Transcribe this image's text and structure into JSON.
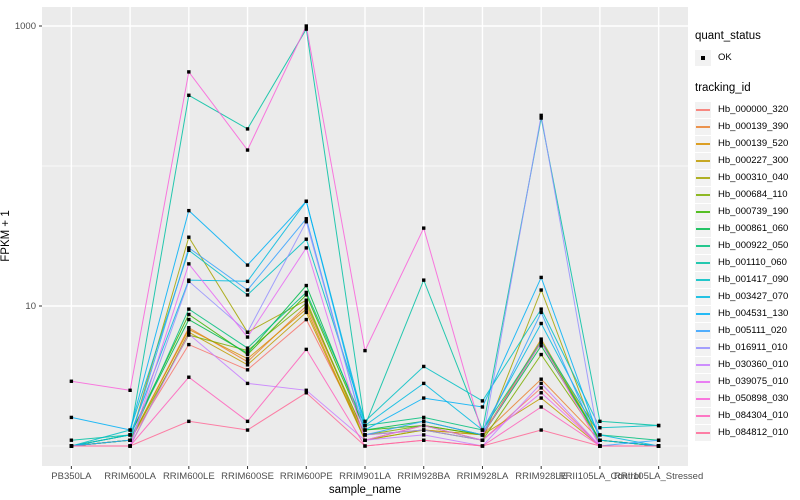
{
  "chart_data": {
    "type": "line",
    "title": "",
    "xlabel": "sample_name",
    "ylabel": "FPKM + 1",
    "y_scale": "log10",
    "y_axis_ticks": [
      {
        "label": "1000",
        "value": 1000
      },
      {
        "label": "10",
        "value": 10
      }
    ],
    "y_minor_breaks": [
      100,
      1
    ],
    "ylim_log": [
      0.85,
      3.14
    ],
    "grid": true,
    "panel_bg": "#EBEBEB",
    "grid_color": "#FFFFFF",
    "point_color": "#000000",
    "categories": [
      "PB350LA",
      "RRIM600LA",
      "RRIM600LE",
      "RRIM600SE",
      "RRIM600PE",
      "RRIM901LA",
      "RRIM928BA",
      "RRIM928LA",
      "RRIM928LE",
      "RRII105LA_Control",
      "RRII105LA_Stressed"
    ],
    "legend_position": "right",
    "legend": {
      "quant_status_title": "quant_status",
      "quant_status_items": [
        {
          "label": "OK",
          "symbol": "point"
        }
      ],
      "tracking_id_title": "tracking_id"
    },
    "series": [
      {
        "name": "Hb_000000_320",
        "color": "#F8766D",
        "values": [
          1.0,
          1.1,
          5.3,
          3.5,
          8.0,
          1.2,
          1.3,
          1.1,
          2.6,
          1.0,
          1.0
        ]
      },
      {
        "name": "Hb_000139_390",
        "color": "#EA8331",
        "values": [
          1.0,
          1.1,
          7.0,
          4.0,
          10.0,
          1.2,
          1.3,
          1.2,
          3.0,
          1.1,
          1.0
        ]
      },
      {
        "name": "Hb_000139_520",
        "color": "#D89000",
        "values": [
          1.0,
          1.1,
          6.8,
          4.2,
          9.5,
          1.1,
          1.4,
          1.2,
          5.8,
          1.1,
          1.0
        ]
      },
      {
        "name": "Hb_000227_300",
        "color": "#C09B00",
        "values": [
          1.0,
          1.0,
          6.5,
          3.8,
          9.0,
          1.1,
          1.3,
          1.2,
          2.2,
          1.0,
          1.0
        ]
      },
      {
        "name": "Hb_000310_040",
        "color": "#A3A500",
        "values": [
          1.0,
          1.1,
          31.0,
          6.5,
          11.0,
          1.1,
          1.3,
          1.1,
          13.0,
          1.0,
          1.0
        ]
      },
      {
        "name": "Hb_000684_110",
        "color": "#7CAE00",
        "values": [
          1.0,
          1.1,
          6.2,
          4.8,
          10.5,
          1.2,
          1.4,
          1.1,
          4.5,
          1.1,
          1.0
        ]
      },
      {
        "name": "Hb_000739_190",
        "color": "#39B600",
        "values": [
          1.0,
          1.2,
          8.7,
          4.5,
          12.0,
          1.3,
          1.4,
          1.2,
          5.5,
          1.1,
          1.0
        ]
      },
      {
        "name": "Hb_000861_060",
        "color": "#00BB4E",
        "values": [
          1.0,
          1.2,
          8.0,
          4.6,
          14.0,
          1.3,
          1.5,
          1.2,
          5.2,
          1.1,
          1.0
        ]
      },
      {
        "name": "Hb_000922_050",
        "color": "#00BF7D",
        "values": [
          1.0,
          1.1,
          9.5,
          5.0,
          12.5,
          1.4,
          1.6,
          1.3,
          5.6,
          1.2,
          1.1
        ]
      },
      {
        "name": "Hb_001110_060",
        "color": "#00C1A3",
        "values": [
          1.1,
          1.2,
          320.0,
          184.0,
          950.0,
          1.4,
          15.3,
          1.3,
          220.0,
          1.5,
          1.4
        ]
      },
      {
        "name": "Hb_001417_090",
        "color": "#00BFC4",
        "values": [
          1.0,
          1.3,
          25.0,
          12.0,
          30.0,
          1.5,
          3.7,
          2.1,
          9.5,
          1.35,
          1.4
        ]
      },
      {
        "name": "Hb_003427_070",
        "color": "#00BAE0",
        "values": [
          1.0,
          1.2,
          15.3,
          15.0,
          56.0,
          1.4,
          2.8,
          1.3,
          7.5,
          1.2,
          1.0
        ]
      },
      {
        "name": "Hb_004531_130",
        "color": "#00B0F6",
        "values": [
          1.6,
          1.3,
          48.0,
          19.6,
          56.0,
          1.3,
          2.2,
          1.9,
          16.0,
          1.1,
          1.0
        ]
      },
      {
        "name": "Hb_005111_020",
        "color": "#35A2FF",
        "values": [
          1.0,
          1.1,
          26.0,
          13.0,
          42.0,
          1.2,
          1.5,
          1.2,
          9.0,
          1.0,
          1.1
        ]
      },
      {
        "name": "Hb_016911_010",
        "color": "#9590FF",
        "values": [
          1.0,
          1.0,
          15.0,
          6.5,
          40.0,
          1.2,
          1.3,
          1.1,
          230.0,
          1.0,
          1.0
        ]
      },
      {
        "name": "Hb_030360_010",
        "color": "#C77CFF",
        "values": [
          1.0,
          1.0,
          6.3,
          2.8,
          2.5,
          1.1,
          1.2,
          1.0,
          2.8,
          1.0,
          1.0
        ]
      },
      {
        "name": "Hb_039075_010",
        "color": "#E76BF3",
        "values": [
          1.0,
          1.0,
          20.0,
          6.0,
          26.0,
          1.1,
          1.4,
          1.1,
          2.4,
          1.0,
          1.0
        ]
      },
      {
        "name": "Hb_050898_030",
        "color": "#FA62DB",
        "values": [
          2.9,
          2.5,
          470.0,
          130.0,
          1000.0,
          4.8,
          36.0,
          1.2,
          5.5,
          1.0,
          1.0
        ]
      },
      {
        "name": "Hb_084304_010",
        "color": "#FF62BC",
        "values": [
          1.0,
          1.0,
          3.1,
          1.5,
          4.9,
          1.0,
          1.1,
          1.0,
          1.9,
          1.0,
          1.0
        ]
      },
      {
        "name": "Hb_084812_010",
        "color": "#FF6A98",
        "values": [
          1.0,
          1.0,
          1.5,
          1.3,
          2.4,
          1.0,
          1.1,
          1.0,
          1.3,
          1.0,
          1.0
        ]
      }
    ]
  }
}
